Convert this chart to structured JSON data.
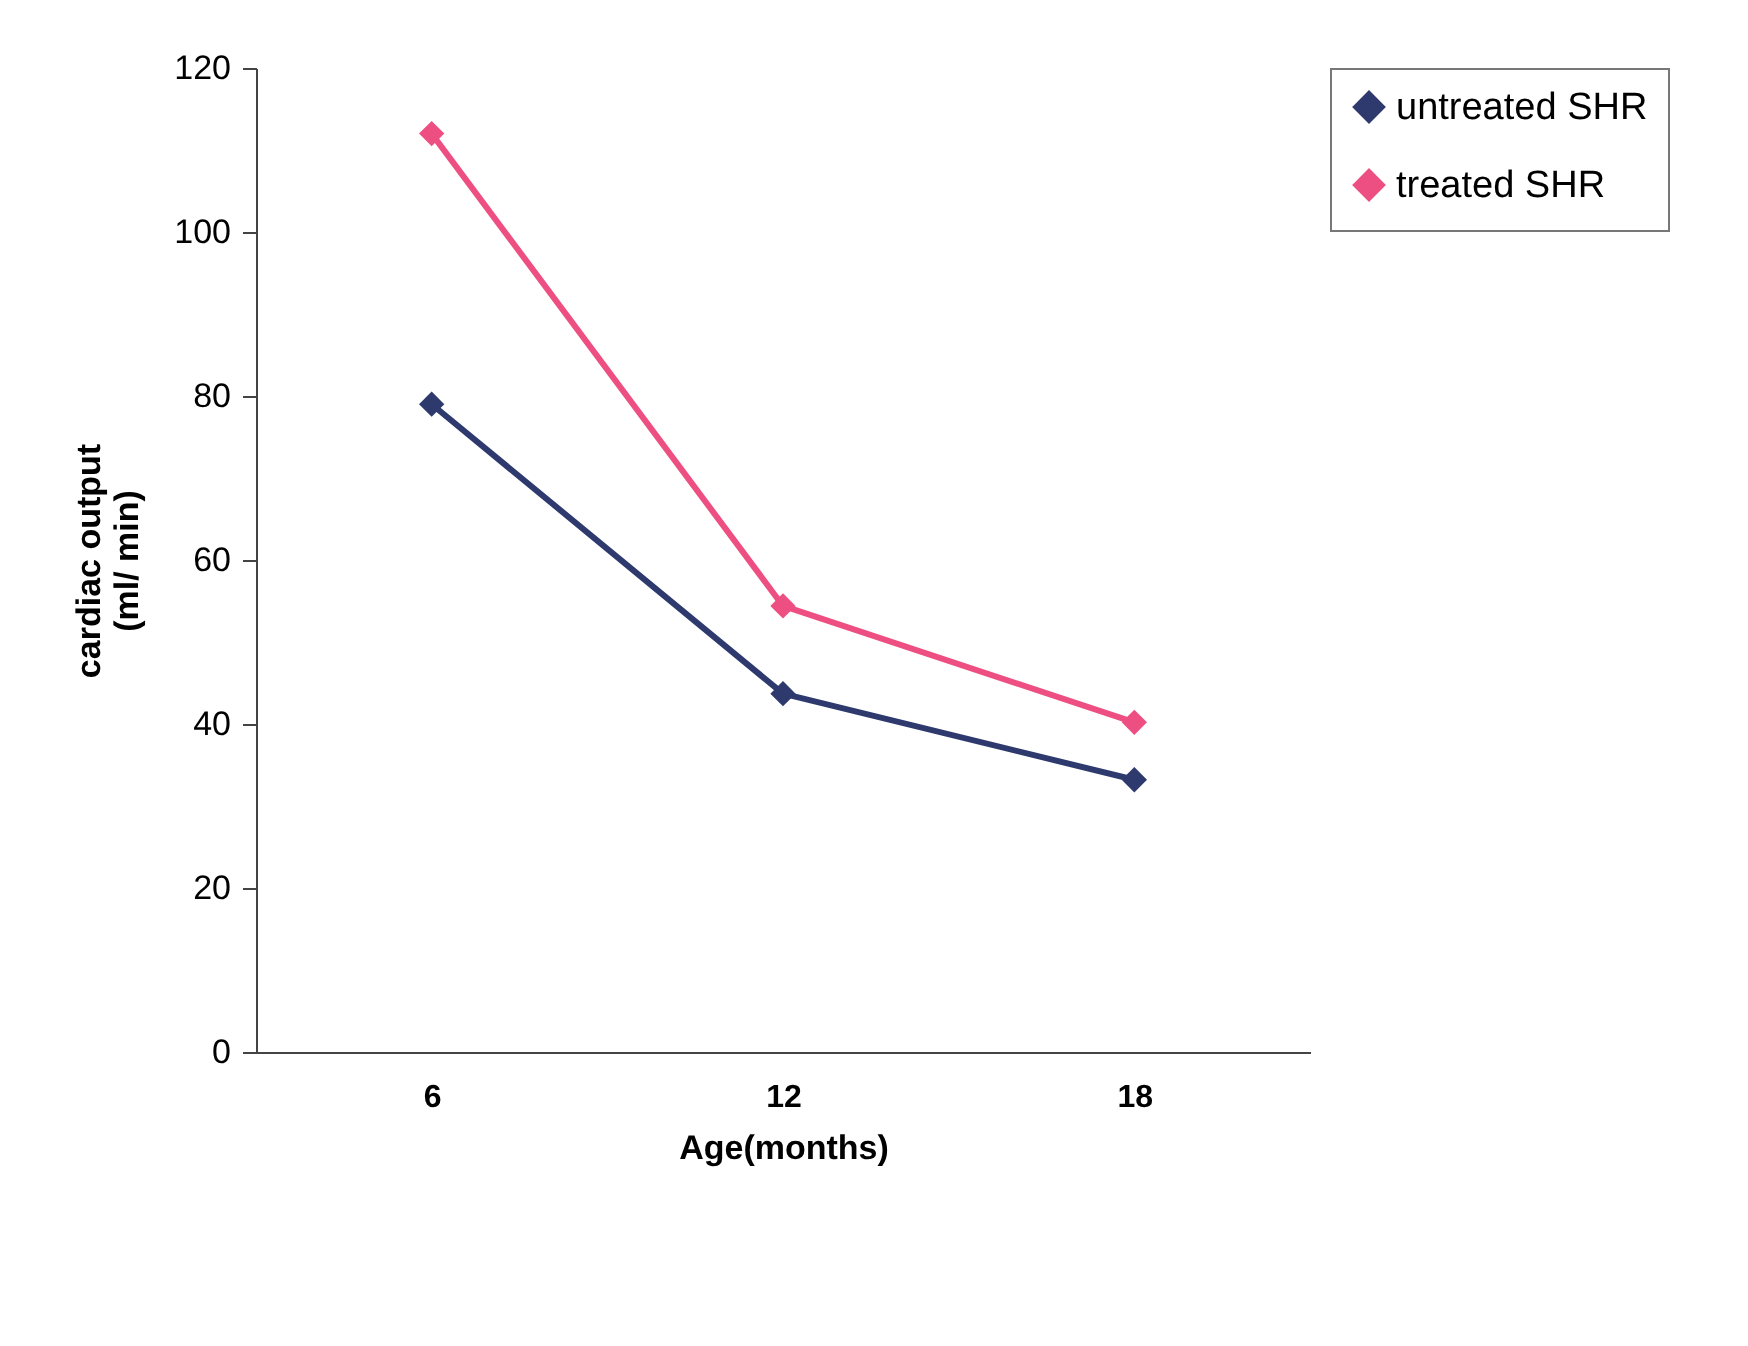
{
  "chart_data": {
    "type": "line",
    "xlabel": "Age(months)",
    "ylabel": "cardiac output\n(ml/ min)",
    "categories": [
      "6",
      "12",
      "18"
    ],
    "series": [
      {
        "name": "untreated SHR",
        "color": "#2e3a6e",
        "values": [
          79,
          43.7,
          33.2
        ]
      },
      {
        "name": "treated SHR",
        "color": "#ee4f82",
        "values": [
          112,
          54.4,
          40.2
        ]
      }
    ],
    "ylim": [
      0,
      120
    ],
    "yticks": [
      0,
      20,
      40,
      60,
      80,
      100,
      120
    ],
    "grid": false,
    "legend": "right",
    "marker": "diamond",
    "line_style": "solid"
  }
}
